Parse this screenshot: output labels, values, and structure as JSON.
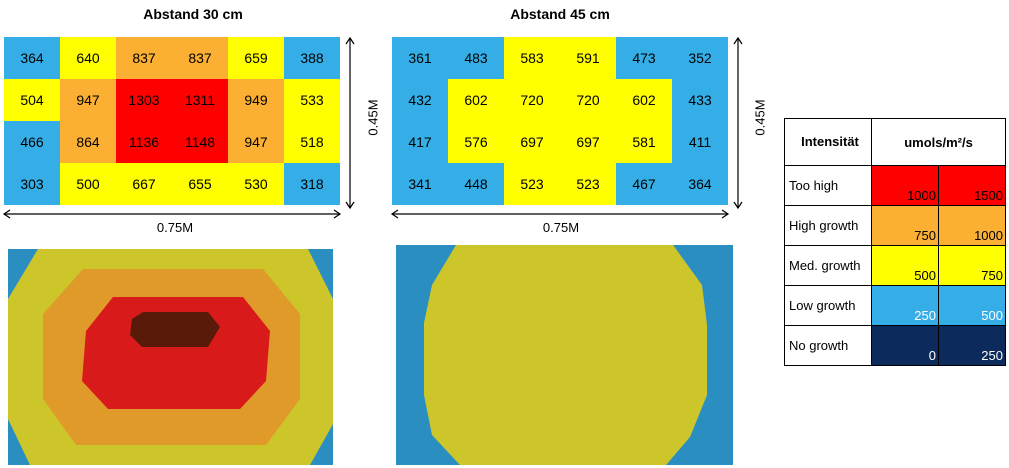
{
  "colors": {
    "too_high": "#ff0000",
    "high_growth": "#fbb034",
    "med_growth": "#ffff00",
    "low_growth": "#35aee7",
    "no_growth": "#0d2a5c",
    "map_dark": "#5a1a0a",
    "map_red": "#d91a1a",
    "map_orange": "#e09a2a",
    "map_yellow": "#cdc62a",
    "map_blue": "#2a8fc0"
  },
  "left": {
    "title": "Abstand 30 cm",
    "width_label": "0.75M",
    "height_label": "0.45M",
    "chart_data": {
      "type": "heatmap",
      "title": "Abstand 30 cm",
      "rows": [
        [
          364,
          640,
          837,
          837,
          659,
          388
        ],
        [
          504,
          947,
          1303,
          1311,
          949,
          533
        ],
        [
          466,
          864,
          1136,
          1148,
          947,
          518
        ],
        [
          303,
          500,
          667,
          655,
          530,
          318
        ]
      ]
    }
  },
  "right": {
    "title": "Abstand 45 cm",
    "width_label": "0.75M",
    "height_label": "0.45M",
    "chart_data": {
      "type": "heatmap",
      "title": "Abstand 45 cm",
      "rows": [
        [
          361,
          483,
          583,
          591,
          473,
          352
        ],
        [
          432,
          602,
          720,
          720,
          602,
          433
        ],
        [
          417,
          576,
          697,
          697,
          581,
          411
        ],
        [
          341,
          448,
          523,
          523,
          467,
          364
        ]
      ]
    }
  },
  "legend": {
    "header_left": "Intensität",
    "header_right": "umols/m²/s",
    "rows": [
      {
        "label": "Too high",
        "min": "1000",
        "max": "1500",
        "color_key": "too_high",
        "text_color": "#000000"
      },
      {
        "label": "High growth",
        "min": "750",
        "max": "1000",
        "color_key": "high_growth",
        "text_color": "#000000"
      },
      {
        "label": "Med. growth",
        "min": "500",
        "max": "750",
        "color_key": "med_growth",
        "text_color": "#000000"
      },
      {
        "label": "Low growth",
        "min": "250",
        "max": "500",
        "color_key": "low_growth",
        "text_color": "#ffffff"
      },
      {
        "label": "No growth",
        "min": "0",
        "max": "250",
        "color_key": "no_growth",
        "text_color": "#ffffff"
      }
    ]
  }
}
